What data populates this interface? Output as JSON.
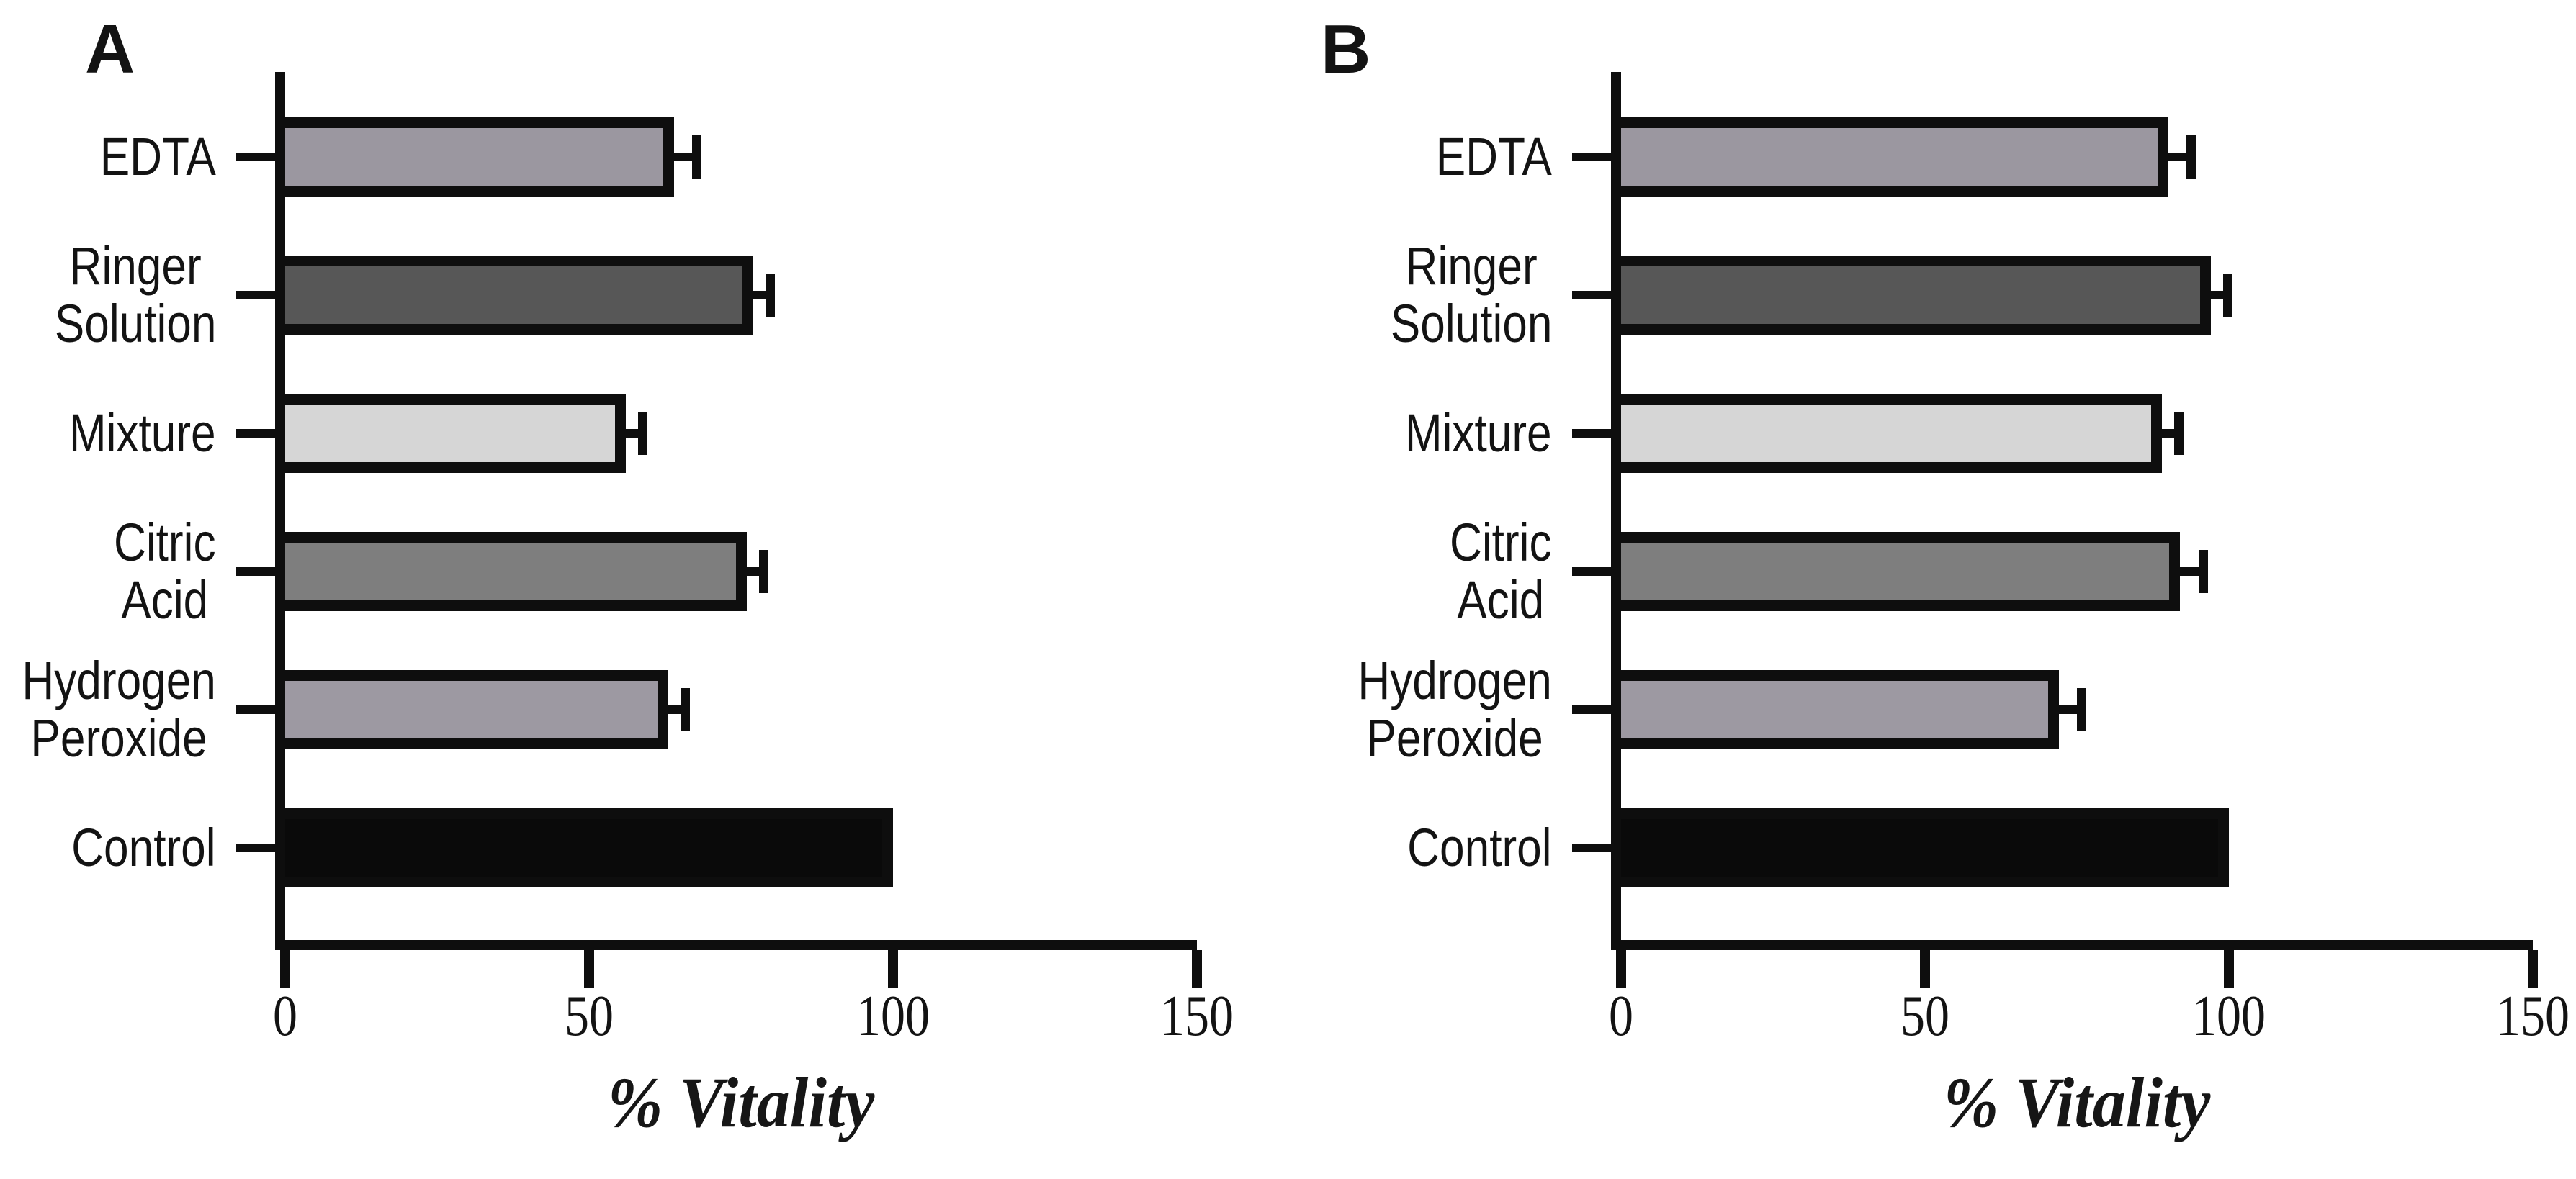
{
  "figure": {
    "type": "two-panel horizontal bar figure",
    "background": "#ffffff",
    "axis_color": "#0e0e0e",
    "text_color": "#131313"
  },
  "chart_data": [
    {
      "type": "bar",
      "orientation": "horizontal",
      "panel": "A",
      "title": "",
      "xlabel": "% Vitality",
      "ylabel": "",
      "xlim": [
        0,
        150
      ],
      "xticks": [
        0,
        50,
        100,
        150
      ],
      "grid": false,
      "legend": false,
      "categories": [
        "EDTA",
        "Ringer Solution",
        "Mixture",
        "Citric Acid",
        "Hydrogen Peroxide",
        "Control"
      ],
      "categories_display": [
        "EDTA",
        "Ringer\nSolution",
        "Mixture",
        "Citric\nAcid",
        "Hydrogen\nPeroxide",
        "Control"
      ],
      "values": [
        64,
        77,
        56,
        76,
        63,
        100
      ],
      "errors": [
        3,
        2,
        2,
        2,
        2,
        0
      ],
      "bar_colors": [
        "#9b97a0",
        "#575757",
        "#d6d6d6",
        "#7e7e7e",
        "#9d99a2",
        "#0a0a0a"
      ],
      "bar_outline": "#0e0e0e"
    },
    {
      "type": "bar",
      "orientation": "horizontal",
      "panel": "B",
      "title": "",
      "xlabel": "% Vitality",
      "ylabel": "",
      "xlim": [
        0,
        150
      ],
      "xticks": [
        0,
        50,
        100,
        150
      ],
      "grid": false,
      "legend": false,
      "categories": [
        "EDTA",
        "Ringer Solution",
        "Mixture",
        "Citric Acid",
        "Hydrogen Peroxide",
        "Control"
      ],
      "categories_display": [
        "EDTA",
        "Ringer\nSolution",
        "Mixture",
        "Citric\nAcid",
        "Hydrogen\nPeroxide",
        "Control"
      ],
      "values": [
        90,
        97,
        89,
        92,
        72,
        100
      ],
      "errors": [
        3,
        2,
        2,
        3,
        3,
        0
      ],
      "bar_colors": [
        "#9b97a0",
        "#575757",
        "#d6d6d6",
        "#7e7e7e",
        "#9d99a2",
        "#0a0a0a"
      ],
      "bar_outline": "#0e0e0e"
    }
  ]
}
